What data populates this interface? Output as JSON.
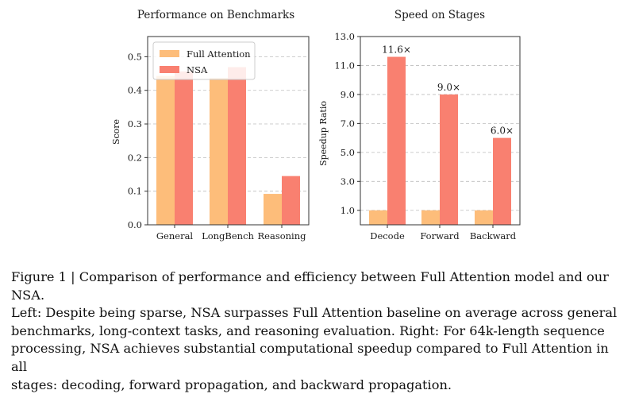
{
  "colors": {
    "full_attention": "#fdbd7a",
    "nsa": "#f98070",
    "grid": "#bdbdbd",
    "axis": "#333333"
  },
  "chart_data": [
    {
      "type": "bar",
      "title": "Performance on Benchmarks",
      "xlabel": "",
      "ylabel": "Score",
      "categories": [
        "General",
        "LongBench",
        "Reasoning"
      ],
      "series": [
        {
          "name": "Full Attention",
          "values": [
            0.443,
            0.437,
            0.092
          ]
        },
        {
          "name": "NSA",
          "values": [
            0.456,
            0.469,
            0.145
          ]
        }
      ],
      "ylim": [
        0,
        0.56
      ],
      "yticks": [
        "0.0",
        "0.1",
        "0.2",
        "0.3",
        "0.4",
        "0.5"
      ],
      "grid": "horizontal dashed",
      "legend": "top-left"
    },
    {
      "type": "bar",
      "title": "Speed on Stages",
      "xlabel": "",
      "ylabel": "Speedup Ratio",
      "categories": [
        "Decode",
        "Forward",
        "Backward"
      ],
      "series": [
        {
          "name": "Full Attention",
          "values": [
            1.0,
            1.0,
            1.0
          ]
        },
        {
          "name": "NSA",
          "values": [
            11.6,
            9.0,
            6.0
          ]
        }
      ],
      "data_labels": [
        "11.6×",
        "9.0×",
        "6.0×"
      ],
      "ylim": [
        0,
        13.0
      ],
      "yticks": [
        "1.0",
        "3.0",
        "5.0",
        "7.0",
        "9.0",
        "11.0",
        "13.0"
      ],
      "grid": "horizontal dashed",
      "legend": "none"
    }
  ],
  "caption": {
    "line1": "Figure 1 | Comparison of performance and efficiency between Full Attention model and our NSA.",
    "line2": "Left: Despite being sparse, NSA surpasses Full Attention baseline on average across general",
    "line3": "benchmarks, long-context tasks, and reasoning evaluation.  Right:  For 64k-length sequence",
    "line4": "processing, NSA achieves substantial computational speedup compared to Full Attention in all",
    "line5": "stages: decoding, forward propagation, and backward propagation."
  }
}
